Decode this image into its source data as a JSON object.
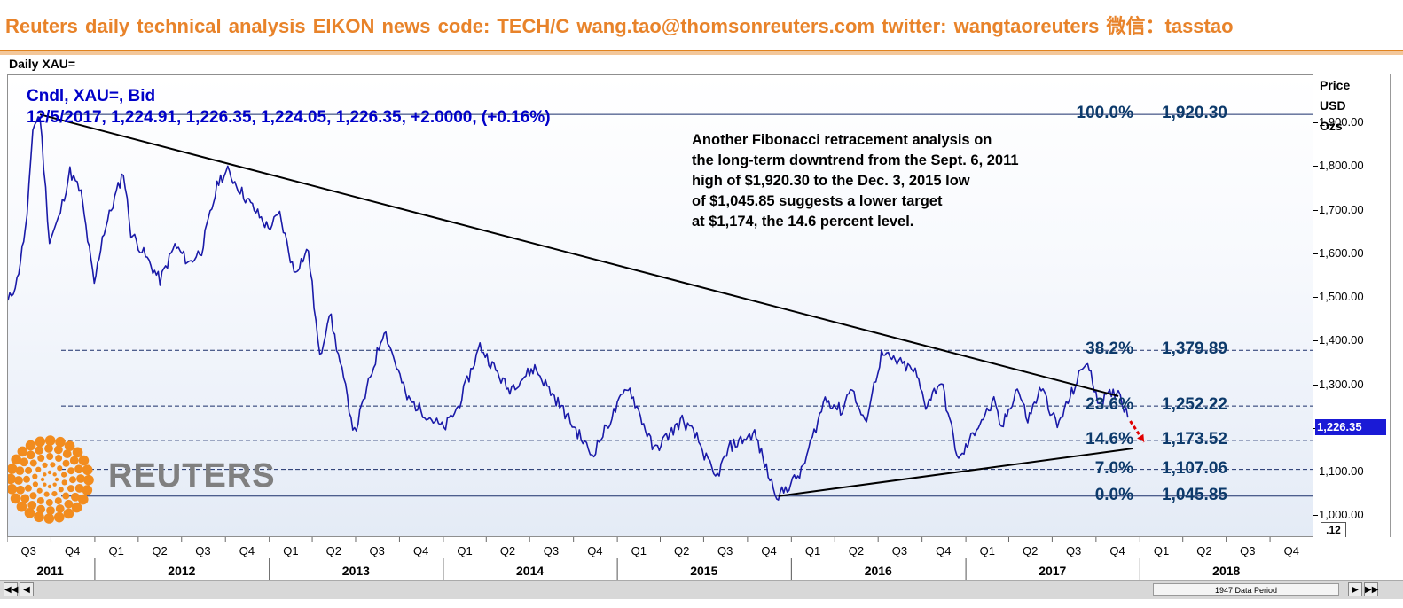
{
  "banner": {
    "text": "Reuters daily technical analysis  EIKON news code: TECH/C  wang.tao@thomsonreuters.com  twitter:  wangtaoreuters   微信：tasstao"
  },
  "panel_title": "Daily XAU=",
  "header": {
    "line1": "Cndl, XAU=, Bid",
    "line2": "12/5/2017, 1,224.91, 1,226.35, 1,224.05, 1,226.35, +2.0000, (+0.16%)"
  },
  "annotation": [
    "Another Fibonacci retracement analysis on",
    "the long-term downtrend from the Sept. 6, 2011",
    "high of $1,920.30 to the Dec. 3, 2015 low",
    "of $1,045.85 suggests a lower target",
    "at $1,174, the 14.6 percent level."
  ],
  "axis_units": [
    "Price",
    "USD",
    "Ozs"
  ],
  "y_ticks": [
    "1,900.00",
    "1,800.00",
    "1,700.00",
    "1,600.00",
    "1,500.00",
    "1,400.00",
    "1,300.00",
    "1,200.00",
    "1,100.00",
    "1,000.00"
  ],
  "last_price": "1,226.35",
  "zoom_label": ".12",
  "scroll_label": "1947 Data Period",
  "logo_text": "REUTERS",
  "colors": {
    "banner": "#e8832a",
    "price_line": "#1a1aa8",
    "fib_text": "#0d3a6b",
    "last_price_bg": "#1a1ad6",
    "target_arrow": "#e00000",
    "logo": "#f28c1e"
  },
  "chart_data": {
    "type": "line",
    "title": "Daily XAU=",
    "series_name": "Cndl, XAU=, Bid",
    "ylabel": "Price USD Ozs",
    "ylim": [
      950,
      2010
    ],
    "x_range": [
      "2011-07-01",
      "2018-12-31"
    ],
    "quarter_ticks": [
      "Q3",
      "Q4",
      "Q1",
      "Q2",
      "Q3",
      "Q4",
      "Q1",
      "Q2",
      "Q3",
      "Q4",
      "Q1",
      "Q2",
      "Q3",
      "Q4",
      "Q1",
      "Q2",
      "Q3",
      "Q4",
      "Q1",
      "Q2",
      "Q3",
      "Q4",
      "Q1",
      "Q2",
      "Q3",
      "Q4",
      "Q1",
      "Q2",
      "Q3",
      "Q4"
    ],
    "year_labels": [
      "2011",
      "2012",
      "2013",
      "2014",
      "2015",
      "2016",
      "2017",
      "2018"
    ],
    "fib_levels": [
      {
        "pct": "100.0%",
        "value": 1920.3,
        "label": "1,920.30"
      },
      {
        "pct": "38.2%",
        "value": 1379.89,
        "label": "1,379.89"
      },
      {
        "pct": "23.6%",
        "value": 1252.22,
        "label": "1,252.22"
      },
      {
        "pct": "14.6%",
        "value": 1173.52,
        "label": "1,173.52"
      },
      {
        "pct": "7.0%",
        "value": 1107.06,
        "label": "1,107.06"
      },
      {
        "pct": "0.0%",
        "value": 1045.85,
        "label": "1,045.85"
      }
    ],
    "trendlines": [
      {
        "name": "downtrend",
        "from": [
          "2011-09-06",
          1920.3
        ],
        "to": [
          "2017-11-15",
          1275
        ]
      },
      {
        "name": "uptrend",
        "from": [
          "2015-12-03",
          1045.85
        ],
        "to": [
          "2017-12-15",
          1155
        ]
      }
    ],
    "target_arrow": {
      "from": [
        "2017-12-10",
        1218
      ],
      "to": [
        "2018-01-08",
        1170
      ]
    },
    "points": [
      [
        "2011-07-01",
        1490
      ],
      [
        "2011-07-20",
        1540
      ],
      [
        "2011-08-10",
        1680
      ],
      [
        "2011-08-22",
        1890
      ],
      [
        "2011-09-06",
        1920
      ],
      [
        "2011-09-26",
        1630
      ],
      [
        "2011-10-15",
        1680
      ],
      [
        "2011-11-08",
        1790
      ],
      [
        "2011-12-01",
        1740
      ],
      [
        "2011-12-29",
        1530
      ],
      [
        "2012-01-15",
        1640
      ],
      [
        "2012-02-28",
        1790
      ],
      [
        "2012-03-15",
        1650
      ],
      [
        "2012-05-15",
        1540
      ],
      [
        "2012-06-15",
        1620
      ],
      [
        "2012-07-15",
        1580
      ],
      [
        "2012-08-10",
        1610
      ],
      [
        "2012-09-15",
        1770
      ],
      [
        "2012-10-04",
        1790
      ],
      [
        "2012-11-10",
        1730
      ],
      [
        "2012-12-28",
        1660
      ],
      [
        "2013-01-21",
        1690
      ],
      [
        "2013-02-20",
        1560
      ],
      [
        "2013-03-22",
        1610
      ],
      [
        "2013-04-15",
        1360
      ],
      [
        "2013-05-05",
        1470
      ],
      [
        "2013-06-27",
        1190
      ],
      [
        "2013-08-28",
        1430
      ],
      [
        "2013-10-15",
        1270
      ],
      [
        "2013-12-31",
        1200
      ],
      [
        "2014-01-30",
        1250
      ],
      [
        "2014-03-17",
        1390
      ],
      [
        "2014-05-15",
        1290
      ],
      [
        "2014-07-10",
        1340
      ],
      [
        "2014-09-15",
        1230
      ],
      [
        "2014-11-07",
        1140
      ],
      [
        "2014-12-15",
        1220
      ],
      [
        "2015-01-22",
        1300
      ],
      [
        "2015-03-17",
        1150
      ],
      [
        "2015-05-15",
        1220
      ],
      [
        "2015-06-15",
        1180
      ],
      [
        "2015-07-24",
        1085
      ],
      [
        "2015-08-24",
        1160
      ],
      [
        "2015-10-14",
        1190
      ],
      [
        "2015-11-15",
        1085
      ],
      [
        "2015-12-03",
        1045
      ],
      [
        "2016-01-20",
        1100
      ],
      [
        "2016-03-10",
        1270
      ],
      [
        "2016-04-15",
        1240
      ],
      [
        "2016-05-02",
        1300
      ],
      [
        "2016-06-01",
        1210
      ],
      [
        "2016-07-06",
        1370
      ],
      [
        "2016-08-15",
        1350
      ],
      [
        "2016-09-15",
        1330
      ],
      [
        "2016-10-07",
        1255
      ],
      [
        "2016-11-08",
        1310
      ],
      [
        "2016-12-15",
        1125
      ],
      [
        "2017-01-25",
        1210
      ],
      [
        "2017-02-27",
        1260
      ],
      [
        "2017-03-15",
        1200
      ],
      [
        "2017-04-17",
        1295
      ],
      [
        "2017-05-09",
        1220
      ],
      [
        "2017-06-06",
        1295
      ],
      [
        "2017-07-10",
        1205
      ],
      [
        "2017-09-08",
        1357
      ],
      [
        "2017-10-06",
        1260
      ],
      [
        "2017-11-15",
        1290
      ],
      [
        "2017-12-05",
        1226
      ]
    ],
    "grid": false
  }
}
